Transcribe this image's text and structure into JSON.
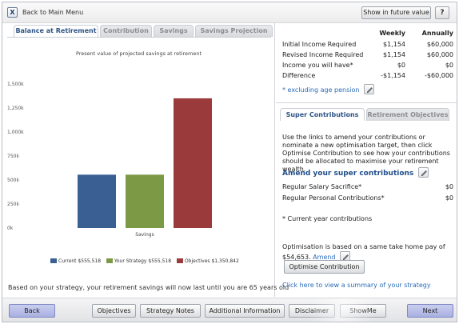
{
  "topbar": {
    "close_label": "X",
    "back_label": "Back to Main Menu",
    "future_value_label": "Show in future value",
    "help_label": "?"
  },
  "left_tabs": [
    {
      "label": "Balance at Retirement",
      "active": true
    },
    {
      "label": "Contribution",
      "active": false
    },
    {
      "label": "Savings",
      "active": false
    },
    {
      "label": "Savings Projection",
      "active": false
    }
  ],
  "chart_data": {
    "type": "bar",
    "title": "Present value of projected savings at retirement",
    "categories": [
      "Savings"
    ],
    "series": [
      {
        "name": "Current",
        "value": 555518,
        "display": "$555,518",
        "color": "#3a5f93"
      },
      {
        "name": "Your Strategy",
        "value": 555518,
        "display": "$555,518",
        "color": "#7c9a45"
      },
      {
        "name": "Objectives",
        "value": 1350842,
        "display": "$1,350,842",
        "color": "#9a3a3a"
      }
    ],
    "yticks": [
      {
        "value": 0,
        "label": "0k"
      },
      {
        "value": 250000,
        "label": "250k"
      },
      {
        "value": 500000,
        "label": "500k"
      },
      {
        "value": 750000,
        "label": "750k"
      },
      {
        "value": 1000000,
        "label": "1,000k"
      },
      {
        "value": 1250000,
        "label": "1,250k"
      },
      {
        "value": 1500000,
        "label": "1,500k"
      }
    ],
    "ylim": [
      0,
      1500000
    ],
    "xlabel": "Savings",
    "legend_position": "bottom"
  },
  "result_text": "Based on your strategy, your retirement savings will now last until you are 65 years old",
  "summary": {
    "headers": {
      "weekly": "Weekly",
      "annually": "Annually"
    },
    "rows": [
      {
        "label": "Initial Income Required",
        "weekly": "$1,154",
        "annually": "$60,000"
      },
      {
        "label": "Revised Income Required",
        "weekly": "$1,154",
        "annually": "$60,000"
      },
      {
        "label": "Income you will have*",
        "weekly": "$0",
        "annually": "$0"
      },
      {
        "label": "Difference",
        "weekly": "-$1,154",
        "annually": "-$60,000"
      }
    ],
    "exclusion_note": "* excluding age pension"
  },
  "right_tabs": [
    {
      "label": "Super Contributions",
      "active": true
    },
    {
      "label": "Retirement Objectives",
      "active": false
    }
  ],
  "contrib": {
    "instructions": "Use the links to amend your contributions or nominate a new optimisation target, then click Optimise Contribution to see how your contributions should be allocated to maximise your retirement wealth.",
    "amend_title": "Amend your super contributions",
    "rows": [
      {
        "label": "Regular Salary Sacrifice*",
        "value": "$0"
      },
      {
        "label": "Regular Personal Contributions*",
        "value": "$0"
      }
    ],
    "note": "* Current year contributions",
    "optimisation_text": "Optimisation is based on a same take home pay of $54,653.",
    "amend_link": "Amend",
    "optimise_button": "Optimise Contribution",
    "summary_link": "Click here to view a summary of your strategy"
  },
  "bottom_buttons": [
    {
      "key": "back",
      "label": "Back"
    },
    {
      "key": "objectives",
      "label": "Objectives"
    },
    {
      "key": "strategy-notes",
      "label": "Strategy Notes"
    },
    {
      "key": "additional-information",
      "label": "Additional Information"
    },
    {
      "key": "disclaimer",
      "label": "Disclaimer"
    },
    {
      "key": "showme",
      "label": "ShowMe"
    },
    {
      "key": "next",
      "label": "Next"
    }
  ]
}
